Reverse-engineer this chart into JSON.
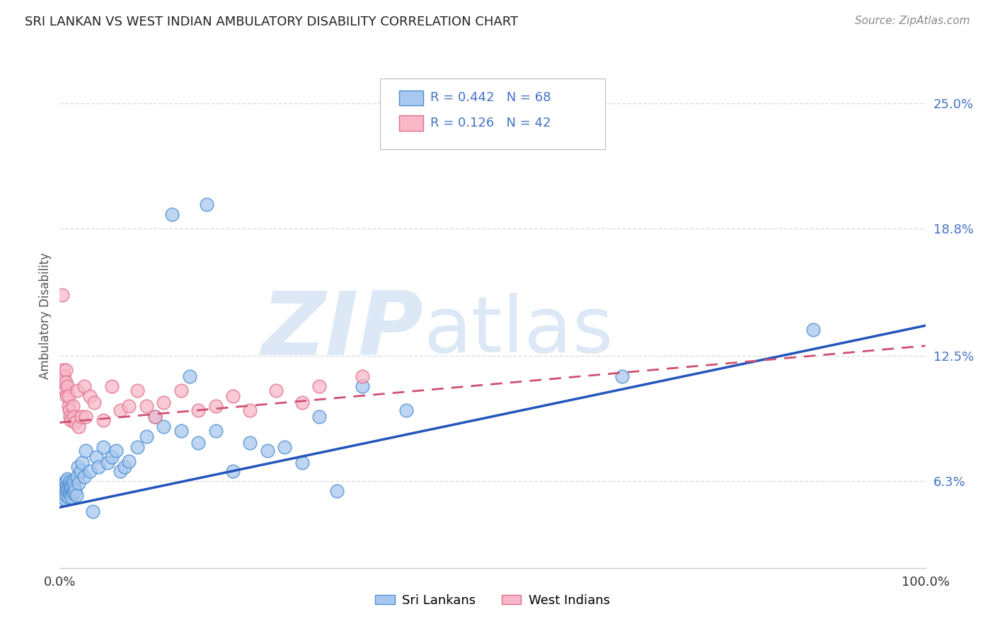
{
  "title": "SRI LANKAN VS WEST INDIAN AMBULATORY DISABILITY CORRELATION CHART",
  "source": "Source: ZipAtlas.com",
  "ylabel": "Ambulatory Disability",
  "xlim": [
    0,
    1.0
  ],
  "ylim": [
    0.02,
    0.27
  ],
  "yticks": [
    0.063,
    0.125,
    0.188,
    0.25
  ],
  "yticklabels": [
    "6.3%",
    "12.5%",
    "18.8%",
    "25.0%"
  ],
  "sri_lankan_dot_color": "#a8c8f0",
  "sri_lankan_edge_color": "#5090d0",
  "west_indian_dot_color": "#f8b8c8",
  "west_indian_edge_color": "#e07090",
  "sri_lankan_line_color": "#2255bb",
  "west_indian_line_color": "#d05070",
  "background_color": "#ffffff",
  "grid_color": "#dddddd",
  "R_sri": 0.442,
  "N_sri": 68,
  "R_west": 0.126,
  "N_west": 42,
  "blue_line_x0": 0.0,
  "blue_line_y0": 0.05,
  "blue_line_x1": 1.0,
  "blue_line_y1": 0.14,
  "pink_line_x0": 0.0,
  "pink_line_y0": 0.092,
  "pink_line_x1": 1.0,
  "pink_line_y1": 0.13,
  "sri_lankans_x": [
    0.003,
    0.004,
    0.005,
    0.005,
    0.006,
    0.006,
    0.007,
    0.007,
    0.008,
    0.008,
    0.009,
    0.009,
    0.01,
    0.01,
    0.011,
    0.011,
    0.012,
    0.012,
    0.013,
    0.013,
    0.014,
    0.014,
    0.015,
    0.015,
    0.016,
    0.016,
    0.017,
    0.018,
    0.019,
    0.02,
    0.021,
    0.022,
    0.024,
    0.026,
    0.028,
    0.03,
    0.035,
    0.038,
    0.042,
    0.045,
    0.05,
    0.055,
    0.06,
    0.065,
    0.07,
    0.075,
    0.08,
    0.09,
    0.1,
    0.11,
    0.12,
    0.14,
    0.16,
    0.18,
    0.2,
    0.22,
    0.24,
    0.26,
    0.28,
    0.3,
    0.15,
    0.32,
    0.35,
    0.4,
    0.65,
    0.87,
    0.17,
    0.13
  ],
  "sri_lankans_y": [
    0.055,
    0.058,
    0.062,
    0.057,
    0.06,
    0.054,
    0.063,
    0.056,
    0.061,
    0.058,
    0.059,
    0.064,
    0.06,
    0.055,
    0.062,
    0.057,
    0.063,
    0.058,
    0.061,
    0.059,
    0.06,
    0.055,
    0.063,
    0.058,
    0.062,
    0.057,
    0.06,
    0.058,
    0.056,
    0.065,
    0.07,
    0.062,
    0.068,
    0.072,
    0.065,
    0.078,
    0.068,
    0.048,
    0.075,
    0.07,
    0.08,
    0.072,
    0.075,
    0.078,
    0.068,
    0.07,
    0.073,
    0.08,
    0.085,
    0.095,
    0.09,
    0.088,
    0.082,
    0.088,
    0.068,
    0.082,
    0.078,
    0.08,
    0.072,
    0.095,
    0.115,
    0.058,
    0.11,
    0.098,
    0.115,
    0.138,
    0.2,
    0.195
  ],
  "west_indians_x": [
    0.002,
    0.003,
    0.004,
    0.005,
    0.005,
    0.006,
    0.007,
    0.007,
    0.008,
    0.009,
    0.01,
    0.01,
    0.011,
    0.012,
    0.013,
    0.015,
    0.016,
    0.018,
    0.02,
    0.022,
    0.025,
    0.028,
    0.03,
    0.035,
    0.04,
    0.05,
    0.06,
    0.07,
    0.08,
    0.09,
    0.1,
    0.11,
    0.12,
    0.14,
    0.16,
    0.18,
    0.2,
    0.22,
    0.25,
    0.28,
    0.3,
    0.35
  ],
  "west_indians_y": [
    0.11,
    0.155,
    0.118,
    0.112,
    0.115,
    0.108,
    0.118,
    0.112,
    0.105,
    0.11,
    0.1,
    0.105,
    0.098,
    0.095,
    0.093,
    0.1,
    0.095,
    0.092,
    0.108,
    0.09,
    0.095,
    0.11,
    0.095,
    0.105,
    0.102,
    0.093,
    0.11,
    0.098,
    0.1,
    0.108,
    0.1,
    0.095,
    0.102,
    0.108,
    0.098,
    0.1,
    0.105,
    0.098,
    0.108,
    0.102,
    0.11,
    0.115
  ],
  "watermark_zip": "ZIP",
  "watermark_atlas": "atlas",
  "legend_label_sri": "Sri Lankans",
  "legend_label_west": "West Indians",
  "tick_color": "#4472c4",
  "title_color": "#222222",
  "source_color": "#888888",
  "ylabel_color": "#555555"
}
